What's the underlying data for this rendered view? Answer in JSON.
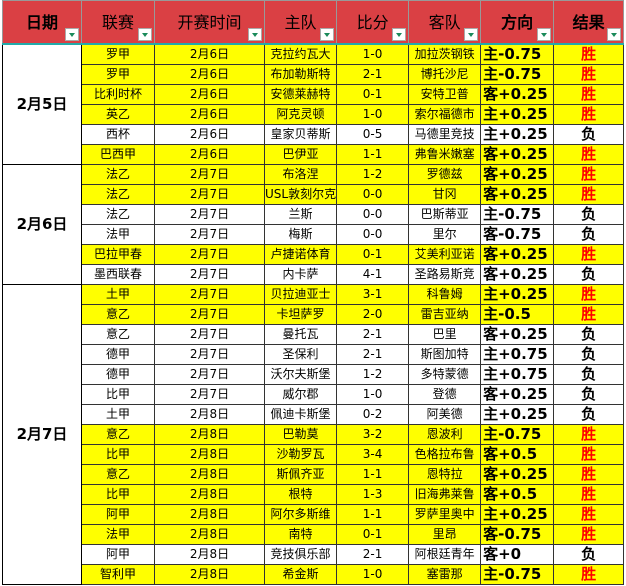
{
  "headers": [
    "日期",
    "联赛",
    "开赛时间",
    "主队",
    "比分",
    "客队",
    "方向",
    "结果"
  ],
  "colors": {
    "header": "#DA4044",
    "highlight": "#FFFF00",
    "win": "#FF0000"
  },
  "groups": [
    {
      "date": "2月5日",
      "rows": [
        [
          "罗甲",
          "2月6日",
          "克拉约瓦大",
          "1-0",
          "加拉茨钢铁",
          "主-0.75",
          "胜"
        ],
        [
          "罗甲",
          "2月6日",
          "布加勒斯特",
          "2-1",
          "博托沙尼",
          "主-0.75",
          "胜"
        ],
        [
          "比利时杯",
          "2月6日",
          "安德莱赫特",
          "0-1",
          "安特卫普",
          "客+0.25",
          "胜"
        ],
        [
          "英乙",
          "2月6日",
          "阿克灵顿",
          "1-0",
          "索尔福德市",
          "主+0.25",
          "胜"
        ],
        [
          "西杯",
          "2月6日",
          "皇家贝蒂斯",
          "0-5",
          "马德里竞技",
          "主+0.25",
          "负"
        ],
        [
          "巴西甲",
          "2月6日",
          "巴伊亚",
          "1-1",
          "弗鲁米嫩塞",
          "客+0.25",
          "胜"
        ]
      ]
    },
    {
      "date": "2月6日",
      "rows": [
        [
          "法乙",
          "2月7日",
          "布洛涅",
          "1-2",
          "罗德兹",
          "客+0.25",
          "胜"
        ],
        [
          "法乙",
          "2月7日",
          "USL敦刻尔克",
          "0-0",
          "甘冈",
          "客+0.25",
          "胜"
        ],
        [
          "法乙",
          "2月7日",
          "兰斯",
          "0-0",
          "巴斯蒂亚",
          "主-0.75",
          "负"
        ],
        [
          "法甲",
          "2月7日",
          "梅斯",
          "0-0",
          "里尔",
          "客-0.75",
          "负"
        ],
        [
          "巴拉甲春",
          "2月7日",
          "卢捷诺体育",
          "0-1",
          "艾美利亚诺",
          "客+0.25",
          "胜"
        ],
        [
          "墨西联春",
          "2月7日",
          "内卡萨",
          "4-1",
          "圣路易斯竞",
          "客+0.25",
          "负"
        ]
      ]
    },
    {
      "date": "2月7日",
      "rows": [
        [
          "土甲",
          "2月7日",
          "贝拉迪亚士",
          "3-1",
          "科鲁姆",
          "主+0.25",
          "胜"
        ],
        [
          "意乙",
          "2月7日",
          "卡坦萨罗",
          "2-0",
          "雷吉亚纳",
          "主-0.5",
          "胜"
        ],
        [
          "意乙",
          "2月7日",
          "曼托瓦",
          "2-1",
          "巴里",
          "客+0.25",
          "负"
        ],
        [
          "德甲",
          "2月7日",
          "圣保利",
          "2-1",
          "斯图加特",
          "主+0.75",
          "负"
        ],
        [
          "德甲",
          "2月7日",
          "沃尔夫斯堡",
          "1-2",
          "多特蒙德",
          "主+0.75",
          "负"
        ],
        [
          "比甲",
          "2月7日",
          "威尔郡",
          "1-0",
          "登德",
          "客+0.25",
          "负"
        ],
        [
          "土甲",
          "2月8日",
          "佩迪卡斯堡",
          "0-2",
          "阿美德",
          "主+0.25",
          "负"
        ],
        [
          "意乙",
          "2月8日",
          "巴勒莫",
          "3-2",
          "恩波利",
          "主-0.75",
          "胜"
        ],
        [
          "比甲",
          "2月8日",
          "沙勒罗瓦",
          "3-4",
          "色格拉布鲁",
          "客+0.5",
          "胜"
        ],
        [
          "意乙",
          "2月8日",
          "斯佩齐亚",
          "1-1",
          "恩特拉",
          "客+0.25",
          "胜"
        ],
        [
          "比甲",
          "2月8日",
          "根特",
          "1-3",
          "旧海弗莱鲁",
          "客+0.5",
          "胜"
        ],
        [
          "阿甲",
          "2月8日",
          "阿尔多斯维",
          "1-1",
          "罗萨里奥中",
          "主+0.25",
          "胜"
        ],
        [
          "法甲",
          "2月8日",
          "南特",
          "0-1",
          "里昂",
          "客-0.75",
          "胜"
        ],
        [
          "阿甲",
          "2月8日",
          "竞技俱乐部",
          "2-1",
          "阿根廷青年",
          "客+0",
          "负"
        ],
        [
          "智利甲",
          "2月8日",
          "希金斯",
          "1-0",
          "塞雷那",
          "主-0.75",
          "胜"
        ]
      ]
    }
  ]
}
